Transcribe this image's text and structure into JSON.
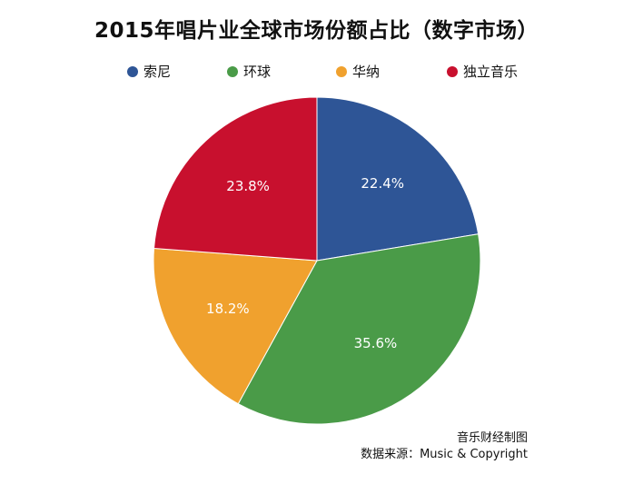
{
  "chart_data": {
    "type": "pie",
    "title": "2015年唱片业全球市场份额占比（数字市场）",
    "unit": "%",
    "slices": [
      {
        "name": "索尼",
        "value": 22.4,
        "label": "22.4%",
        "color": "#2e5596"
      },
      {
        "name": "环球",
        "value": 35.6,
        "label": "35.6%",
        "color": "#4a9b48"
      },
      {
        "name": "华纳",
        "value": 18.2,
        "label": "18.2%",
        "color": "#f0a12e"
      },
      {
        "name": "独立音乐",
        "value": 23.8,
        "label": "23.8%",
        "color": "#c8102e"
      }
    ],
    "start_angle": "12 o'clock",
    "direction": "clockwise",
    "legend_placement": "top"
  },
  "footer": {
    "line1": "音乐财经制图",
    "line2": "数据来源：Music & Copyright"
  }
}
